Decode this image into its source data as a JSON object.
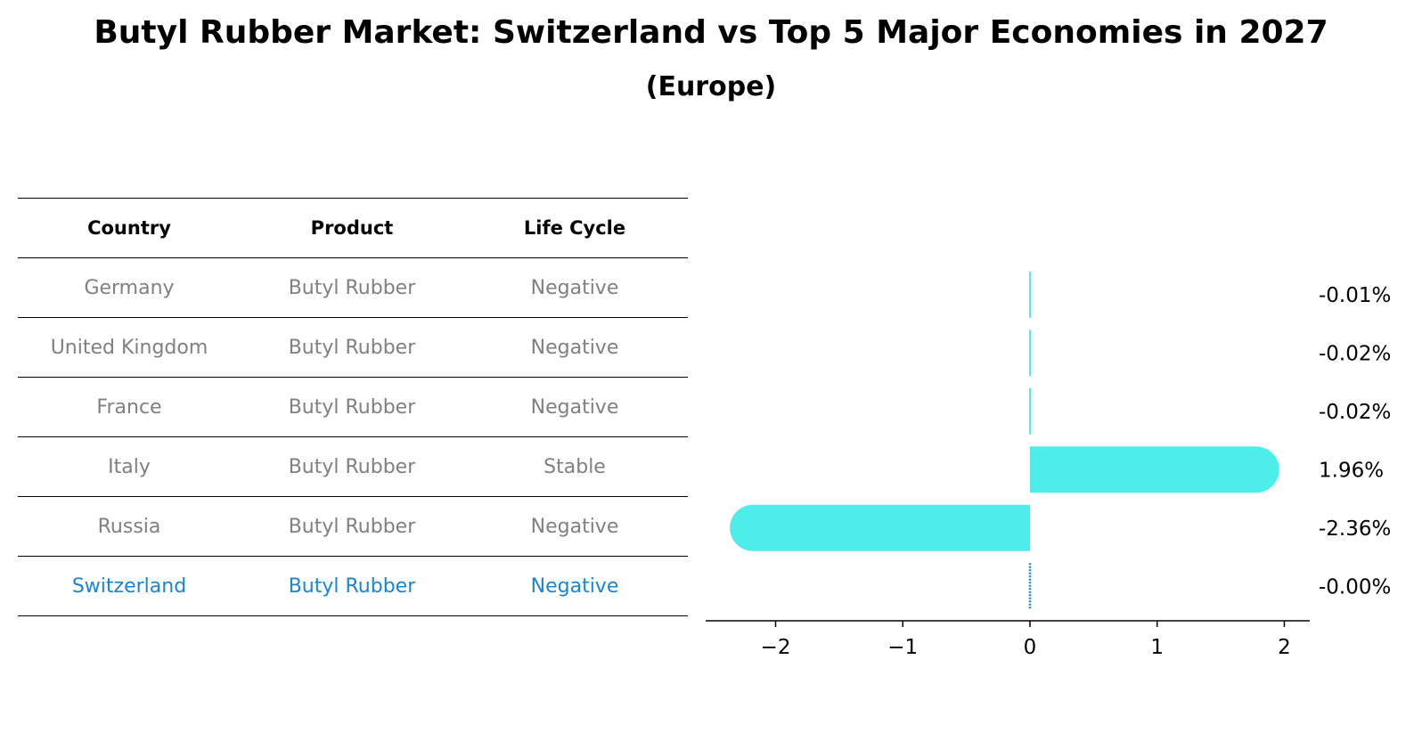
{
  "title": "Butyl Rubber Market: Switzerland vs Top 5 Major Economies in 2027",
  "subtitle": "(Europe)",
  "table": {
    "headers": [
      "Country",
      "Product",
      "Life Cycle"
    ],
    "rows": [
      [
        "Germany",
        "Butyl Rubber",
        "Negative"
      ],
      [
        "United Kingdom",
        "Butyl Rubber",
        "Negative"
      ],
      [
        "France",
        "Butyl Rubber",
        "Negative"
      ],
      [
        "Italy",
        "Butyl Rubber",
        "Stable"
      ],
      [
        "Russia",
        "Butyl Rubber",
        "Negative"
      ],
      [
        "Switzerland",
        "Butyl Rubber",
        "Negative"
      ]
    ],
    "highlight_color": "#1a84d6"
  },
  "chart_data": {
    "type": "bar",
    "orientation": "horizontal",
    "categories": [
      "Germany",
      "United Kingdom",
      "France",
      "Italy",
      "Russia",
      "Switzerland"
    ],
    "values": [
      -0.01,
      -0.02,
      -0.02,
      1.96,
      -2.36,
      -0.0
    ],
    "value_labels": [
      "-0.01%",
      "-0.02%",
      "-0.02%",
      "1.96%",
      "-2.36%",
      "-0.00%"
    ],
    "xlim": [
      -2.55,
      2.2
    ],
    "xticks": [
      -2,
      -1,
      0,
      1,
      2
    ],
    "xtick_labels": [
      "−2",
      "−1",
      "0",
      "1",
      "2"
    ],
    "bar_color": "#4deee9",
    "highlight_color": "#1a84d6",
    "highlight_index": 5,
    "grid": false
  }
}
